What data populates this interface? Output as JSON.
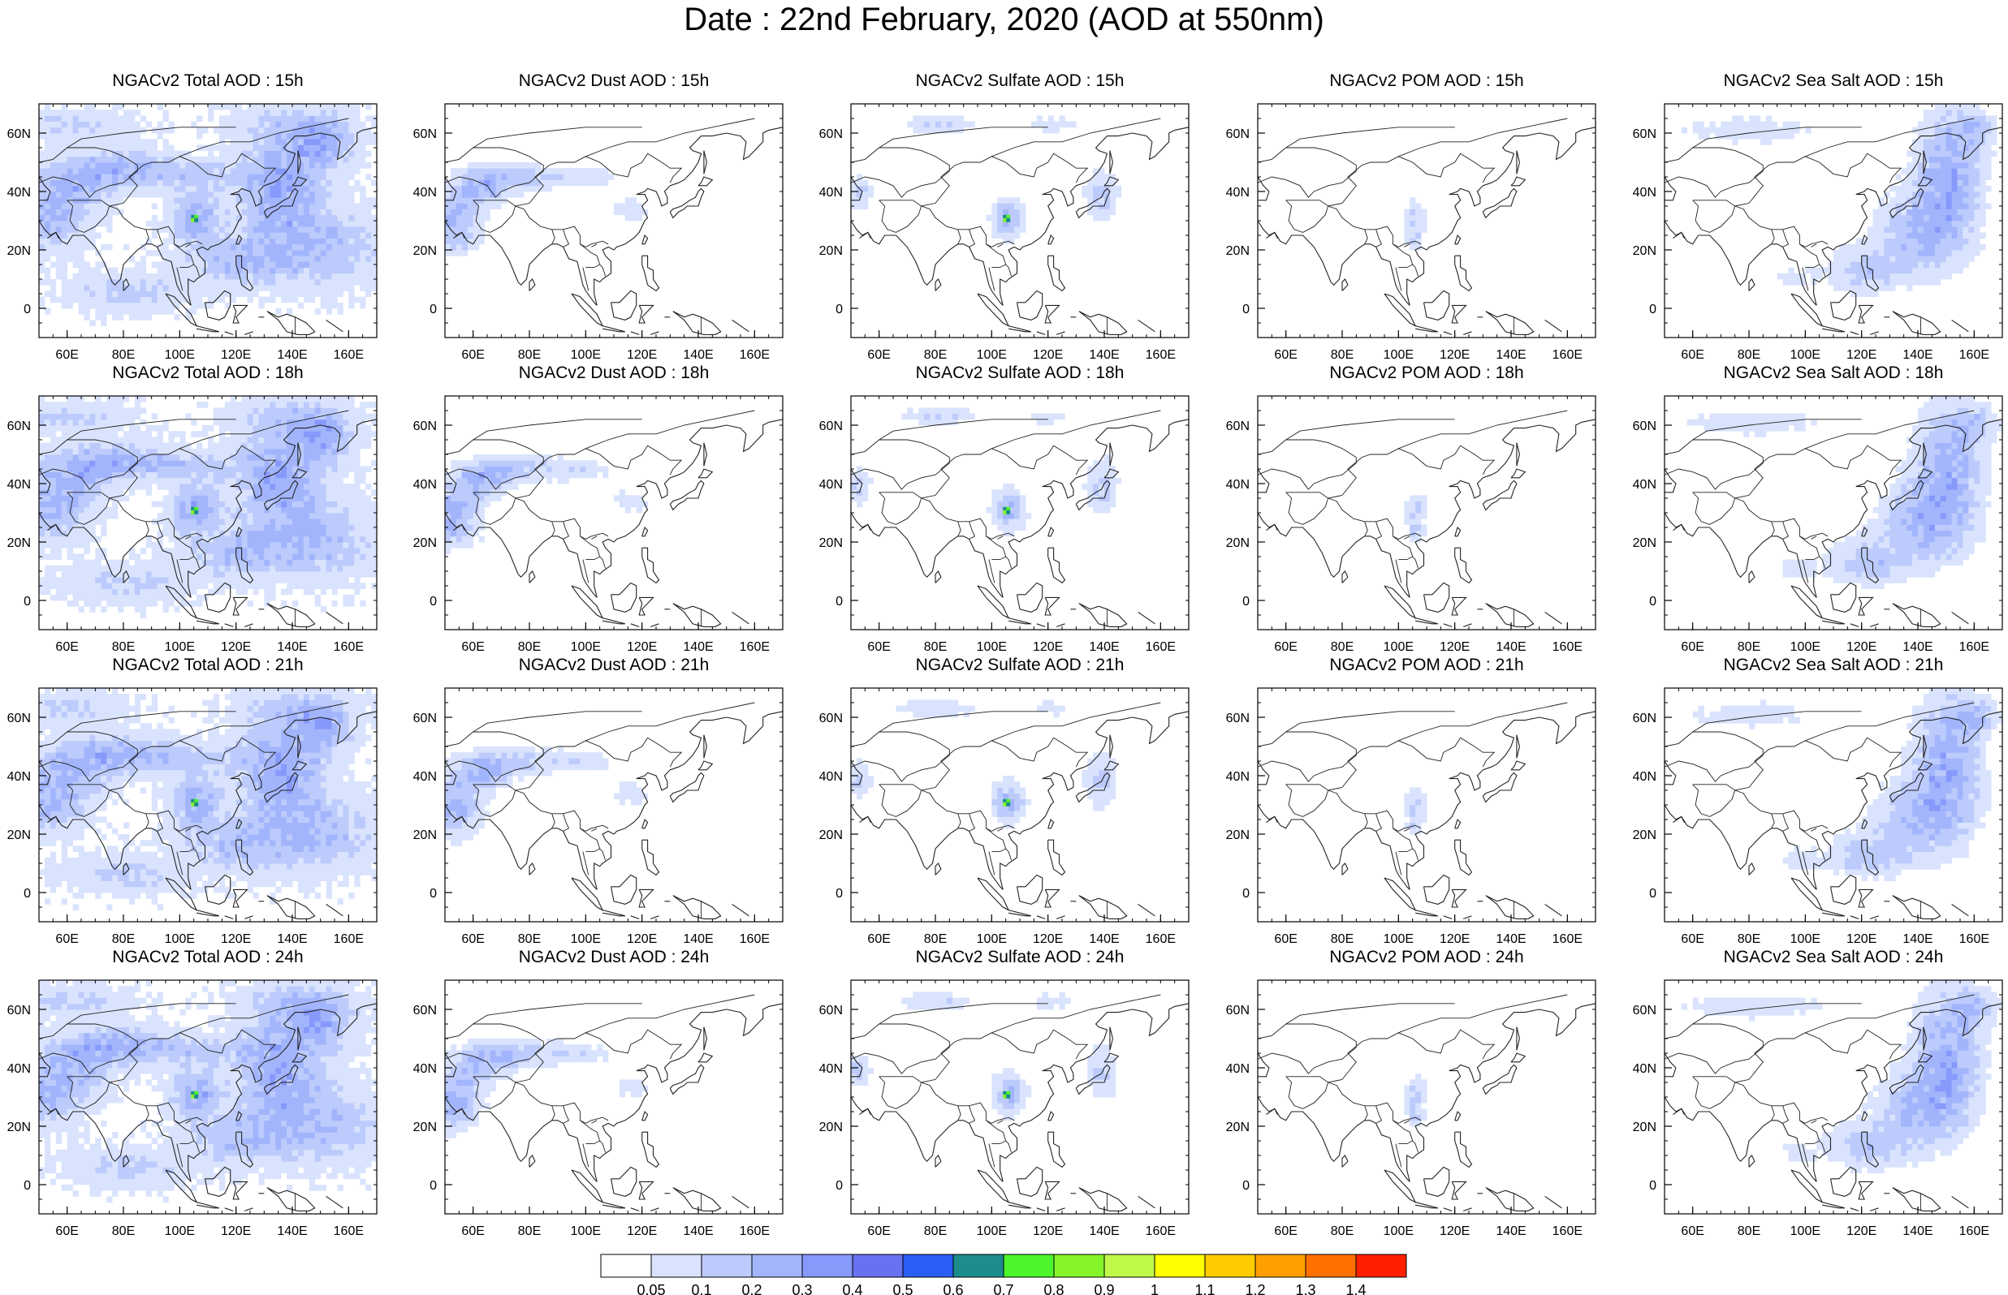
{
  "title": "Date : 22nd February, 2020 (AOD at 550nm)",
  "lon_ticks": [
    "60E",
    "80E",
    "100E",
    "120E",
    "140E",
    "160E"
  ],
  "lat_ticks": [
    "60N",
    "40N",
    "20N",
    "0"
  ],
  "hours": [
    "15h",
    "18h",
    "21h",
    "24h"
  ],
  "variables": [
    "Total",
    "Dust",
    "Sulfate",
    "POM",
    "SeaSalt"
  ],
  "panel_titles": [
    [
      "NGACv2 Total AOD : 15h",
      "NGACv2 Dust AOD : 15h",
      "NGACv2 Sulfate AOD : 15h",
      "NGACv2 POM AOD : 15h",
      "NGACv2 Sea Salt AOD : 15h"
    ],
    [
      "NGACv2 Total AOD : 18h",
      "NGACv2 Dust AOD : 18h",
      "NGACv2 Sulfate AOD : 18h",
      "NGACv2 POM AOD : 18h",
      "NGACv2 Sea Salt AOD : 18h"
    ],
    [
      "NGACv2 Total AOD : 21h",
      "NGACv2 Dust AOD : 21h",
      "NGACv2 Sulfate AOD : 21h",
      "NGACv2 POM AOD : 21h",
      "NGACv2 Sea Salt AOD : 21h"
    ],
    [
      "NGACv2 Total AOD : 24h",
      "NGACv2 Dust AOD : 24h",
      "NGACv2 Sulfate AOD : 24h",
      "NGACv2 POM AOD : 24h",
      "NGACv2 Sea Salt  AOD : 24h"
    ]
  ],
  "colorbar": {
    "labels": [
      "0.05",
      "0.1",
      "0.2",
      "0.3",
      "0.4",
      "0.5",
      "0.6",
      "0.7",
      "0.8",
      "0.9",
      "1",
      "1.1",
      "1.2",
      "1.3",
      "1.4"
    ],
    "colors": [
      "#ffffff",
      "#d9e3fd",
      "#bccbfc",
      "#a2b5fc",
      "#8799fb",
      "#6a71f0",
      "#2b5ef4",
      "#1c8c8c",
      "#4ef42c",
      "#86f42a",
      "#c0f84a",
      "#ffff00",
      "#ffcc00",
      "#ffa000",
      "#ff7000",
      "#ff2000"
    ]
  },
  "map_extent": {
    "lon": [
      50,
      170
    ],
    "lat": [
      -10,
      70
    ]
  }
}
